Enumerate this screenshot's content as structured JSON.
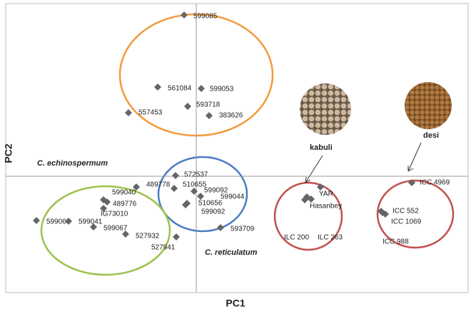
{
  "chart_data": {
    "type": "scatter",
    "xlabel": "PC1",
    "ylabel": "PC2",
    "xlim": [
      -2.67,
      3.81
    ],
    "ylim": [
      -1.63,
      2.42
    ],
    "color": "#666666",
    "point_labels": [
      "599085",
      "561084",
      "599053",
      "593718",
      "557453",
      "383626",
      "572537",
      "489778",
      "510655",
      "599092",
      "599044",
      "510656",
      "599092",
      "593709",
      "599040",
      "489776",
      "IG73010",
      "59906",
      "599041",
      "599067",
      "527932",
      "527941",
      "YAR",
      "Hasanbey",
      "ILC 200",
      "ILC 263",
      "ICC 4969",
      "ICC 552",
      "ICC 1069",
      "ICC 988"
    ],
    "x": [
      -0.17,
      -0.54,
      0.07,
      -0.12,
      -0.95,
      0.18,
      -0.29,
      -0.84,
      -0.31,
      -0.03,
      0.06,
      -0.13,
      -0.15,
      0.34,
      -1.3,
      -1.25,
      -1.3,
      -2.24,
      -1.79,
      -1.44,
      -0.99,
      -0.28,
      1.74,
      1.55,
      1.52,
      1.61,
      3.02,
      2.59,
      2.61,
      2.65
    ],
    "values": [
      2.26,
      1.25,
      1.23,
      0.98,
      0.89,
      0.85,
      0.01,
      -0.15,
      -0.17,
      -0.21,
      -0.28,
      -0.38,
      -0.4,
      -0.72,
      -0.33,
      -0.36,
      -0.45,
      -0.62,
      -0.63,
      -0.71,
      -0.81,
      -0.85,
      -0.15,
      -0.29,
      -0.33,
      -0.32,
      -0.09,
      -0.49,
      -0.51,
      -0.53
    ],
    "annotations": [
      "C. echinospermum",
      "C. reticulatum",
      "kabuli",
      "desi"
    ]
  }
}
